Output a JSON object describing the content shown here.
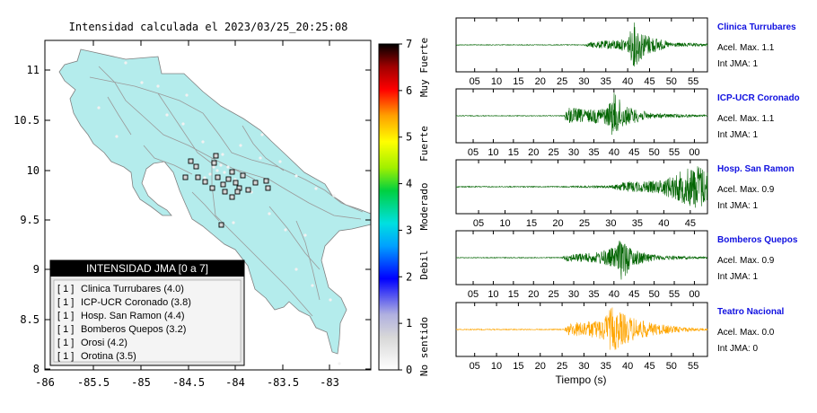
{
  "map": {
    "title": "Intensidad calculada el 2023/03/25_20:25:08",
    "lat_ticks": [
      "11",
      "10.5",
      "10",
      "9.5",
      "9",
      "8.5",
      "8"
    ],
    "lon_ticks": [
      "-86",
      "-85.5",
      "-85",
      "-84.5",
      "-84",
      "-83.5",
      "-83"
    ],
    "land_color": "#b4ecec",
    "ocean_color": "#ffffff"
  },
  "colorbar": {
    "ticks": [
      "0",
      "1",
      "2",
      "3",
      "4",
      "5",
      "6",
      "7"
    ],
    "labels": [
      "No sentido",
      "Debil",
      "Moderado",
      "Fuerte",
      "Muy Fuerte"
    ]
  },
  "legend": {
    "title": "INTENSIDAD JMA [0 a 7]",
    "entries": [
      {
        "jma": "[ 1 ]",
        "name": "Clinica Turrubares (4.0)"
      },
      {
        "jma": "[ 1 ]",
        "name": "ICP-UCR Coronado (3.8)"
      },
      {
        "jma": "[ 1 ]",
        "name": "Hosp. San Ramon (4.4)"
      },
      {
        "jma": "[ 1 ]",
        "name": "Bomberos Quepos (3.2)"
      },
      {
        "jma": "[ 1 ]",
        "name": "Orosi (4.2)"
      },
      {
        "jma": "[ 1 ]",
        "name": "Orotina (3.5)"
      }
    ]
  },
  "seismograms": [
    {
      "name": "Clinica Turrubares",
      "accel": "Acel. Max. 1.1",
      "jma": "Int JMA: 1",
      "color": "#006400",
      "ticks": [
        "05",
        "10",
        "15",
        "20",
        "25",
        "30",
        "35",
        "40",
        "45",
        "50",
        "55"
      ]
    },
    {
      "name": "ICP-UCR Coronado",
      "accel": "Acel. Max. 1.1",
      "jma": "Int JMA: 1",
      "color": "#006400",
      "ticks": [
        "05",
        "10",
        "15",
        "20",
        "25",
        "30",
        "35",
        "40",
        "45",
        "50",
        "55",
        "00"
      ]
    },
    {
      "name": "Hosp. San Ramon",
      "accel": "Acel. Max. 0.9",
      "jma": "Int JMA: 1",
      "color": "#006400",
      "ticks": [
        "05",
        "10",
        "15",
        "20",
        "25",
        "30",
        "35",
        "40",
        "45"
      ]
    },
    {
      "name": "Bomberos Quepos",
      "accel": "Acel. Max. 0.9",
      "jma": "Int JMA: 1",
      "color": "#006400",
      "ticks": [
        "05",
        "10",
        "15",
        "20",
        "25",
        "30",
        "35",
        "40",
        "45",
        "50",
        "55",
        "00"
      ]
    },
    {
      "name": "Teatro Nacional",
      "accel": "Acel. Max. 0.0",
      "jma": "Int JMA: 0",
      "color": "#ffa500",
      "ticks": [
        "05",
        "10",
        "15",
        "20",
        "25",
        "30",
        "35",
        "40",
        "45",
        "50",
        "55"
      ]
    }
  ],
  "xlabel": "Tiempo (s)"
}
